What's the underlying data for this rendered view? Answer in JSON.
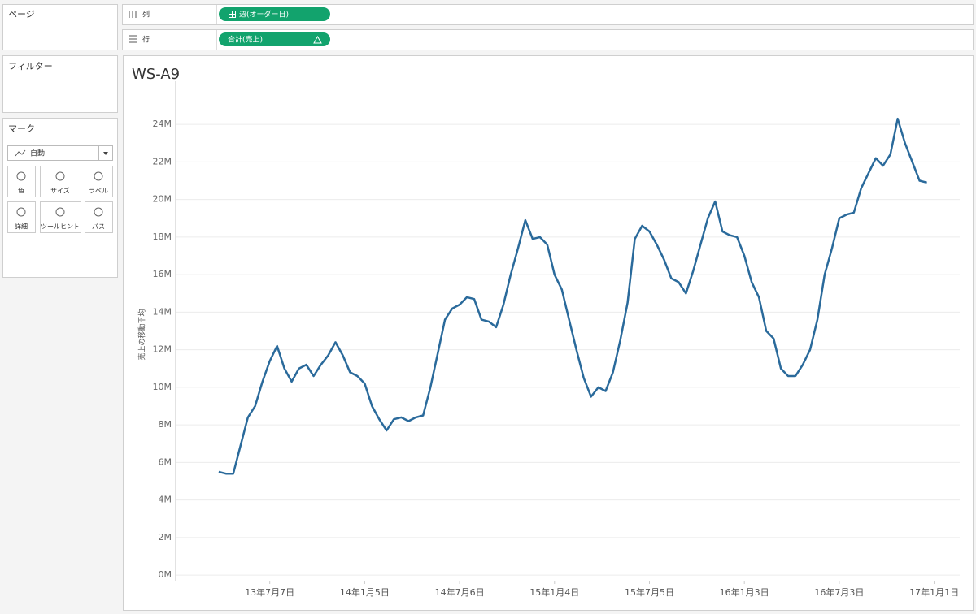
{
  "shelves": {
    "pages": "ページ",
    "filters": "フィルター",
    "marks": {
      "title": "マーク",
      "type": "自動",
      "buttons": [
        "色",
        "サイズ",
        "ラベル",
        "詳細",
        "ツールヒント",
        "パス"
      ]
    },
    "columns": {
      "label": "列",
      "pill": "週(オーダー日)"
    },
    "rows": {
      "label": "行",
      "pill": "合計(売上)"
    }
  },
  "chart_data": {
    "type": "line",
    "title": "WS-A9",
    "y_label": "売上の移動平均",
    "color": "#2a6a9b",
    "grid": true,
    "x": [
      "2013-03-31",
      "2013-04-14",
      "2013-04-28",
      "2013-05-12",
      "2013-05-26",
      "2013-06-09",
      "2013-06-23",
      "2013-07-07",
      "2013-07-21",
      "2013-08-04",
      "2013-08-18",
      "2013-09-01",
      "2013-09-15",
      "2013-09-29",
      "2013-10-13",
      "2013-10-27",
      "2013-11-10",
      "2013-11-24",
      "2013-12-08",
      "2013-12-22",
      "2014-01-05",
      "2014-01-19",
      "2014-02-02",
      "2014-02-16",
      "2014-03-02",
      "2014-03-16",
      "2014-03-30",
      "2014-04-13",
      "2014-04-27",
      "2014-05-11",
      "2014-05-25",
      "2014-06-08",
      "2014-06-22",
      "2014-07-06",
      "2014-07-20",
      "2014-08-03",
      "2014-08-17",
      "2014-08-31",
      "2014-09-14",
      "2014-09-28",
      "2014-10-12",
      "2014-10-26",
      "2014-11-09",
      "2014-11-23",
      "2014-12-07",
      "2014-12-21",
      "2015-01-04",
      "2015-01-18",
      "2015-02-01",
      "2015-02-15",
      "2015-03-01",
      "2015-03-15",
      "2015-03-29",
      "2015-04-12",
      "2015-04-26",
      "2015-05-10",
      "2015-05-24",
      "2015-06-07",
      "2015-06-21",
      "2015-07-05",
      "2015-07-19",
      "2015-08-02",
      "2015-08-16",
      "2015-08-30",
      "2015-09-13",
      "2015-09-27",
      "2015-10-11",
      "2015-10-25",
      "2015-11-08",
      "2015-11-22",
      "2015-12-06",
      "2015-12-20",
      "2016-01-03",
      "2016-01-17",
      "2016-01-31",
      "2016-02-14",
      "2016-02-28",
      "2016-03-13",
      "2016-03-27",
      "2016-04-10",
      "2016-04-24",
      "2016-05-08",
      "2016-05-22",
      "2016-06-05",
      "2016-06-19",
      "2016-07-03",
      "2016-07-17",
      "2016-07-31",
      "2016-08-14",
      "2016-08-28",
      "2016-09-11",
      "2016-09-25",
      "2016-10-09",
      "2016-10-23",
      "2016-11-06",
      "2016-11-20",
      "2016-12-04",
      "2016-12-18"
    ],
    "values": [
      5500000,
      5400000,
      5400000,
      6900000,
      8400000,
      9000000,
      10300000,
      11400000,
      12200000,
      11000000,
      10300000,
      11000000,
      11200000,
      10600000,
      11200000,
      11700000,
      12400000,
      11700000,
      10800000,
      10600000,
      10200000,
      9000000,
      8300000,
      7700000,
      8300000,
      8400000,
      8200000,
      8400000,
      8500000,
      10000000,
      11800000,
      13600000,
      14200000,
      14400000,
      14800000,
      14700000,
      13600000,
      13500000,
      13200000,
      14400000,
      16000000,
      17400000,
      18900000,
      17900000,
      18000000,
      17600000,
      16000000,
      15200000,
      13600000,
      12000000,
      10500000,
      9500000,
      10000000,
      9800000,
      10800000,
      12500000,
      14500000,
      17900000,
      18600000,
      18300000,
      17600000,
      16800000,
      15800000,
      15600000,
      15000000,
      16200000,
      17600000,
      19000000,
      19900000,
      18300000,
      18100000,
      18000000,
      17000000,
      15600000,
      14800000,
      13000000,
      12600000,
      11000000,
      10600000,
      10600000,
      11200000,
      12000000,
      13600000,
      16000000,
      17400000,
      19000000,
      19200000,
      19300000,
      20600000,
      21400000,
      22200000,
      21800000,
      22400000,
      24300000,
      23000000,
      22000000,
      21000000,
      20900000
    ],
    "xlim": [
      "2013-01-06",
      "2017-02-19"
    ],
    "xticks": [
      {
        "value": "2013-07-07",
        "label": "13年7月7日"
      },
      {
        "value": "2014-01-05",
        "label": "14年1月5日"
      },
      {
        "value": "2014-07-06",
        "label": "14年7月6日"
      },
      {
        "value": "2015-01-04",
        "label": "15年1月4日"
      },
      {
        "value": "2015-07-05",
        "label": "15年7月5日"
      },
      {
        "value": "2016-01-03",
        "label": "16年1月3日"
      },
      {
        "value": "2016-07-03",
        "label": "16年7月3日"
      },
      {
        "value": "2017-01-01",
        "label": "17年1月1日"
      }
    ],
    "ylim": [
      -300000,
      26300000
    ],
    "yticks": [
      {
        "value": 0,
        "label": "0M"
      },
      {
        "value": 2000000,
        "label": "2M"
      },
      {
        "value": 4000000,
        "label": "4M"
      },
      {
        "value": 6000000,
        "label": "6M"
      },
      {
        "value": 8000000,
        "label": "8M"
      },
      {
        "value": 10000000,
        "label": "10M"
      },
      {
        "value": 12000000,
        "label": "12M"
      },
      {
        "value": 14000000,
        "label": "14M"
      },
      {
        "value": 16000000,
        "label": "16M"
      },
      {
        "value": 18000000,
        "label": "18M"
      },
      {
        "value": 20000000,
        "label": "20M"
      },
      {
        "value": 22000000,
        "label": "22M"
      },
      {
        "value": 24000000,
        "label": "24M"
      }
    ]
  }
}
